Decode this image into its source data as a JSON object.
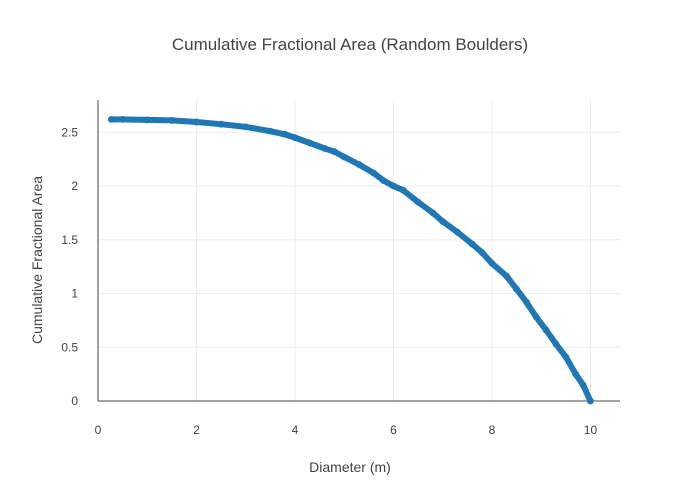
{
  "chart_data": {
    "type": "scatter",
    "title": "Cumulative Fractional Area (Random Boulders)",
    "xlabel": "Diameter (m)",
    "ylabel": "Cumulative Fractional Area",
    "xlim": [
      0,
      10.6
    ],
    "ylim": [
      0,
      2.8
    ],
    "xticks": [
      {
        "value": 0,
        "label": "0"
      },
      {
        "value": 2,
        "label": "2"
      },
      {
        "value": 4,
        "label": "4"
      },
      {
        "value": 6,
        "label": "6"
      },
      {
        "value": 8,
        "label": "8"
      },
      {
        "value": 10,
        "label": "10"
      }
    ],
    "yticks": [
      {
        "value": 0,
        "label": "0"
      },
      {
        "value": 0.5,
        "label": "0.5"
      },
      {
        "value": 1,
        "label": "1"
      },
      {
        "value": 1.5,
        "label": "1.5"
      },
      {
        "value": 2,
        "label": "2"
      },
      {
        "value": 2.5,
        "label": "2.5"
      }
    ],
    "grid": true,
    "series": [
      {
        "color": "#1f77b4",
        "x": [
          0.27,
          0.5,
          1.0,
          1.5,
          2.0,
          2.5,
          3.0,
          3.5,
          3.8,
          4.0,
          4.3,
          4.6,
          4.8,
          5.0,
          5.3,
          5.6,
          5.8,
          6.0,
          6.2,
          6.5,
          6.8,
          7.0,
          7.3,
          7.6,
          7.8,
          8.0,
          8.3,
          8.5,
          8.7,
          8.9,
          9.1,
          9.3,
          9.5,
          9.7,
          9.85,
          10.0
        ],
        "y": [
          2.62,
          2.62,
          2.615,
          2.61,
          2.595,
          2.575,
          2.55,
          2.51,
          2.48,
          2.45,
          2.4,
          2.35,
          2.32,
          2.27,
          2.2,
          2.12,
          2.05,
          2.0,
          1.96,
          1.85,
          1.75,
          1.67,
          1.57,
          1.46,
          1.38,
          1.28,
          1.16,
          1.04,
          0.92,
          0.78,
          0.66,
          0.53,
          0.41,
          0.25,
          0.15,
          0.0
        ]
      }
    ]
  }
}
